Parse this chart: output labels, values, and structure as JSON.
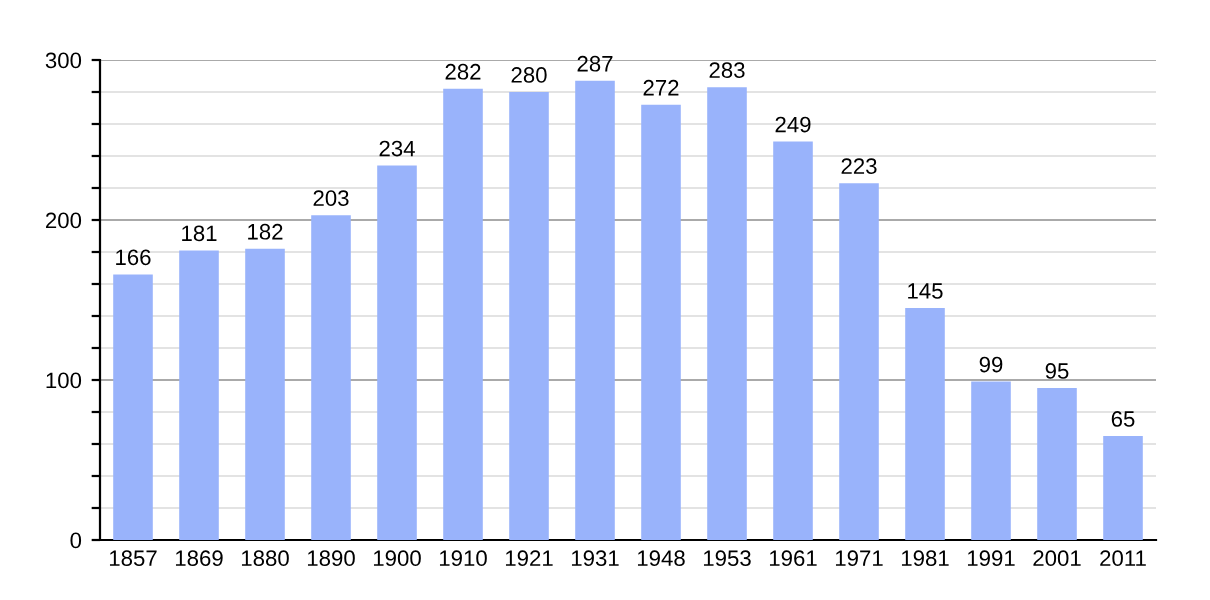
{
  "chart_data": {
    "type": "bar",
    "categories": [
      "1857",
      "1869",
      "1880",
      "1890",
      "1900",
      "1910",
      "1921",
      "1931",
      "1948",
      "1953",
      "1961",
      "1971",
      "1981",
      "1991",
      "2001",
      "2011"
    ],
    "values": [
      166,
      181,
      182,
      203,
      234,
      282,
      280,
      287,
      272,
      283,
      249,
      223,
      145,
      99,
      95,
      65
    ],
    "color": "#99b3fb",
    "ylim": [
      0,
      300
    ],
    "yticks": [
      0,
      {
        "value": 20,
        "label": null
      },
      {
        "value": 40,
        "label": null
      },
      {
        "value": 60,
        "label": null
      },
      {
        "value": 80,
        "label": null
      },
      100,
      {
        "value": 120,
        "label": null
      },
      {
        "value": 140,
        "label": null
      },
      {
        "value": 160,
        "label": null
      },
      {
        "value": 180,
        "label": null
      },
      200,
      {
        "value": 220,
        "label": null
      },
      {
        "value": 240,
        "label": null
      },
      {
        "value": 260,
        "label": null
      },
      {
        "value": 280,
        "label": null
      },
      300
    ],
    "grid": "y",
    "data_labels": true
  }
}
